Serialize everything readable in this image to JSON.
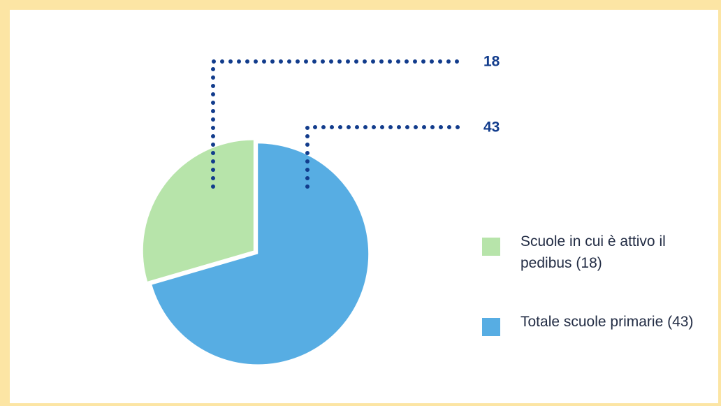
{
  "chart_data": {
    "type": "pie",
    "categories": [
      "Scuole in cui è attivo il pedibus (18)",
      "Totale scuole primarie (43)"
    ],
    "values": [
      18,
      43
    ],
    "colors": [
      "#b7e4aa",
      "#57ade3"
    ]
  }
}
